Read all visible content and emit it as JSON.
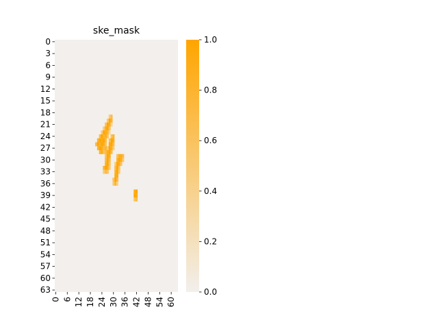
{
  "chart_data": {
    "type": "heatmap",
    "title": "ske_mask",
    "rows": 64,
    "cols": 64,
    "x_ticks": [
      0,
      6,
      12,
      18,
      24,
      30,
      36,
      42,
      48,
      54,
      60
    ],
    "y_ticks": [
      0,
      3,
      6,
      9,
      12,
      15,
      18,
      21,
      24,
      27,
      30,
      33,
      36,
      39,
      42,
      45,
      48,
      51,
      54,
      57,
      60,
      63
    ],
    "colorbar": {
      "min": 0.0,
      "max": 1.0,
      "ticks": [
        "0.0",
        "0.2",
        "0.4",
        "0.6",
        "0.8",
        "1.0"
      ],
      "low_color": "#f2efec",
      "high_color": "#ffa500"
    },
    "cells": [
      [
        19,
        28,
        0.5
      ],
      [
        19,
        29,
        0.7
      ],
      [
        20,
        27,
        0.5
      ],
      [
        20,
        28,
        1.0
      ],
      [
        20,
        29,
        0.8
      ],
      [
        21,
        26,
        0.6
      ],
      [
        21,
        27,
        1.0
      ],
      [
        21,
        28,
        0.9
      ],
      [
        21,
        29,
        0.4
      ],
      [
        22,
        25,
        0.5
      ],
      [
        22,
        26,
        0.9
      ],
      [
        22,
        27,
        1.0
      ],
      [
        22,
        28,
        0.6
      ],
      [
        23,
        24,
        0.5
      ],
      [
        23,
        25,
        1.0
      ],
      [
        23,
        26,
        0.9
      ],
      [
        23,
        27,
        0.8
      ],
      [
        23,
        28,
        0.3
      ],
      [
        24,
        23,
        0.7
      ],
      [
        24,
        24,
        1.0
      ],
      [
        24,
        25,
        0.8
      ],
      [
        24,
        26,
        0.9
      ],
      [
        24,
        27,
        0.6
      ],
      [
        24,
        29,
        0.6
      ],
      [
        24,
        30,
        0.8
      ],
      [
        25,
        22,
        0.8
      ],
      [
        25,
        23,
        1.0
      ],
      [
        25,
        24,
        0.9
      ],
      [
        25,
        25,
        1.0
      ],
      [
        25,
        26,
        0.7
      ],
      [
        25,
        28,
        0.6
      ],
      [
        25,
        29,
        1.0
      ],
      [
        25,
        30,
        0.9
      ],
      [
        26,
        21,
        0.7
      ],
      [
        26,
        22,
        1.0
      ],
      [
        26,
        23,
        0.8
      ],
      [
        26,
        24,
        1.0
      ],
      [
        26,
        25,
        0.9
      ],
      [
        26,
        26,
        0.6
      ],
      [
        26,
        28,
        0.9
      ],
      [
        26,
        29,
        1.0
      ],
      [
        26,
        30,
        0.7
      ],
      [
        27,
        22,
        0.8
      ],
      [
        27,
        23,
        1.0
      ],
      [
        27,
        24,
        0.9
      ],
      [
        27,
        25,
        0.7
      ],
      [
        27,
        26,
        0.8
      ],
      [
        27,
        27,
        0.5
      ],
      [
        27,
        28,
        1.0
      ],
      [
        27,
        29,
        0.9
      ],
      [
        27,
        30,
        0.5
      ],
      [
        28,
        23,
        0.8
      ],
      [
        28,
        24,
        0.9
      ],
      [
        28,
        25,
        0.6
      ],
      [
        28,
        26,
        0.7
      ],
      [
        28,
        27,
        0.9
      ],
      [
        28,
        28,
        1.0
      ],
      [
        28,
        29,
        0.7
      ],
      [
        29,
        26,
        0.6
      ],
      [
        29,
        27,
        1.0
      ],
      [
        29,
        28,
        0.9
      ],
      [
        29,
        32,
        0.6
      ],
      [
        29,
        33,
        0.9
      ],
      [
        29,
        34,
        0.9
      ],
      [
        29,
        35,
        0.7
      ],
      [
        30,
        26,
        0.7
      ],
      [
        30,
        27,
        1.0
      ],
      [
        30,
        28,
        0.7
      ],
      [
        30,
        32,
        0.8
      ],
      [
        30,
        33,
        1.0
      ],
      [
        30,
        34,
        0.9
      ],
      [
        30,
        35,
        0.5
      ],
      [
        31,
        26,
        0.8
      ],
      [
        31,
        27,
        1.0
      ],
      [
        31,
        28,
        0.6
      ],
      [
        31,
        31,
        0.5
      ],
      [
        31,
        32,
        1.0
      ],
      [
        31,
        33,
        0.9
      ],
      [
        31,
        34,
        0.6
      ],
      [
        32,
        25,
        0.8
      ],
      [
        32,
        26,
        1.0
      ],
      [
        32,
        27,
        0.9
      ],
      [
        32,
        28,
        0.5
      ],
      [
        32,
        31,
        0.7
      ],
      [
        32,
        32,
        1.0
      ],
      [
        32,
        33,
        0.6
      ],
      [
        33,
        25,
        0.5
      ],
      [
        33,
        26,
        0.7
      ],
      [
        33,
        27,
        0.6
      ],
      [
        33,
        31,
        0.8
      ],
      [
        33,
        32,
        1.0
      ],
      [
        33,
        33,
        0.5
      ],
      [
        34,
        31,
        0.9
      ],
      [
        34,
        32,
        0.9
      ],
      [
        35,
        30,
        0.6
      ],
      [
        35,
        31,
        1.0
      ],
      [
        35,
        32,
        0.7
      ],
      [
        36,
        30,
        0.5
      ],
      [
        36,
        31,
        0.8
      ],
      [
        36,
        32,
        0.4
      ],
      [
        38,
        41,
        0.9
      ],
      [
        38,
        42,
        1.0
      ],
      [
        39,
        41,
        1.0
      ],
      [
        39,
        42,
        0.9
      ],
      [
        40,
        41,
        0.6
      ],
      [
        40,
        42,
        0.7
      ]
    ]
  }
}
